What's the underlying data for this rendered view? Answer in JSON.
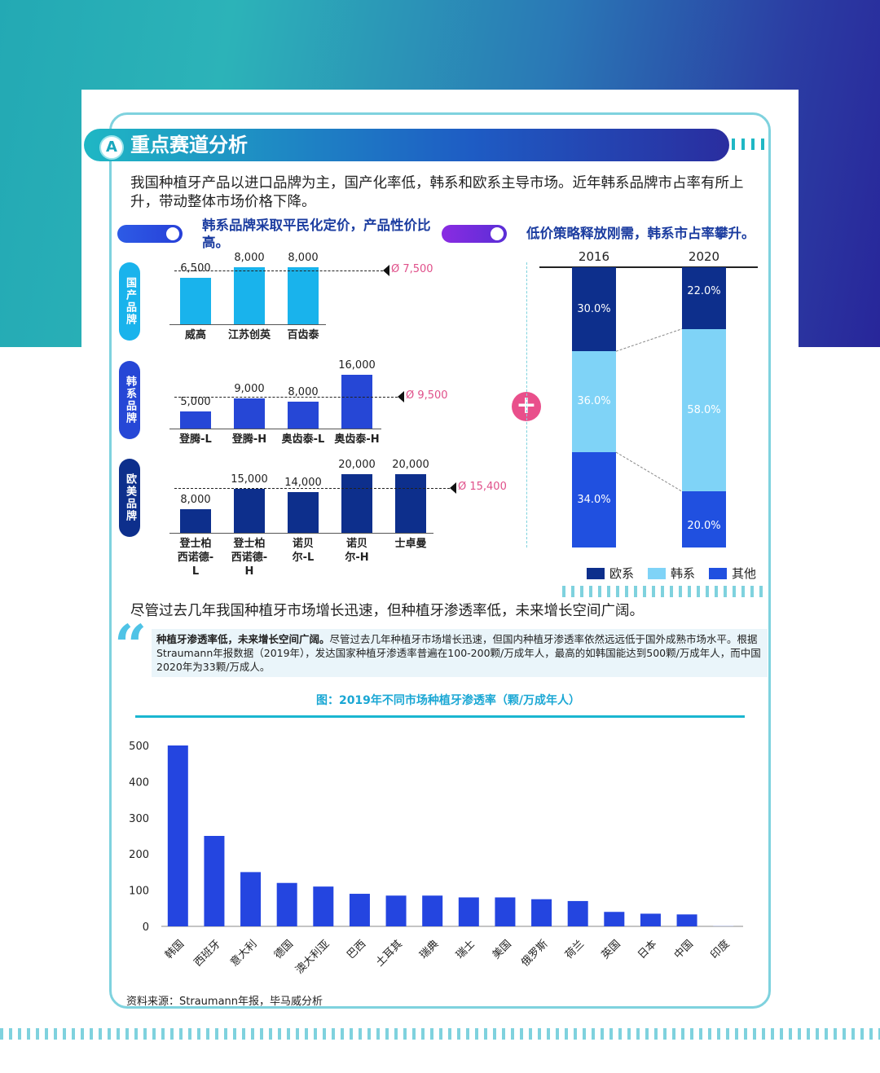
{
  "section_title": "重点赛道分析",
  "section_badge": "A",
  "intro_text": "我国种植牙产品以进口品牌为主，国产化率低，韩系和欧系主导市场。近年韩系品牌市占率有所上升，带动整体市场价格下降。",
  "left_heading": "韩系品牌采取平民化定价，产品性价比高。",
  "right_heading": "低价策略释放刚需，韩系市占率攀升。",
  "price_groups": [
    {
      "tag": "国产品牌",
      "avg_label": "Ø 7,500"
    },
    {
      "tag": "韩系品牌",
      "avg_label": "Ø 9,500"
    },
    {
      "tag": "欧美品牌",
      "avg_label": "Ø 15,400"
    }
  ],
  "plus_sign": "+",
  "stack_years": [
    "2016",
    "2020"
  ],
  "legend": [
    "欧系",
    "韩系",
    "其他"
  ],
  "sentence2": "尽管过去几年我国种植牙市场增长迅速，但种植牙渗透率低，未来增长空间广阔。",
  "quote_bold": "种植牙渗透率低，未来增长空间广阔。",
  "quote_text": "尽管过去几年种植牙市场增长迅速，但国内种植牙渗透率依然远远低于国外成熟市场水平。根据Straumann年报数据（2019年），发达国家种植牙渗透率普遍在100-200颗/万成年人，最高的如韩国能达到500颗/万成年人，而中国2020年为33颗/万成人。",
  "source": "资料来源：Straumann年报，毕马威分析",
  "colors": {
    "domestic": "#19b3ec",
    "korean": "#2647d6",
    "european": "#0d2f8c",
    "korean_share": "#7fd3f7",
    "other_share": "#2050e0",
    "bar": "#2445e0"
  },
  "chart_data": [
    {
      "type": "bar",
      "title": "",
      "series": [
        {
          "name": "国产品牌",
          "categories": [
            "威高",
            "江苏创英",
            "百齿泰"
          ],
          "values": [
            6500,
            8000,
            8000
          ],
          "labels": [
            "6,500",
            "8,000",
            "8,000"
          ],
          "average": 7500
        },
        {
          "name": "韩系品牌",
          "categories": [
            "登腾-L",
            "登腾-H",
            "奥齿泰-L",
            "奥齿泰-H"
          ],
          "values": [
            5000,
            9000,
            8000,
            16000
          ],
          "labels": [
            "5,000",
            "9,000",
            "8,000",
            "16,000"
          ],
          "average": 9500
        },
        {
          "name": "欧美品牌",
          "categories": [
            "登士柏西诺德-L",
            "登士柏西诺德-H",
            "诺贝尔-L",
            "诺贝尔-H",
            "士卓曼"
          ],
          "values": [
            8000,
            15000,
            14000,
            20000,
            20000
          ],
          "labels": [
            "8,000",
            "15,000",
            "14,000",
            "20,000",
            "20,000"
          ],
          "average": 15400
        }
      ]
    },
    {
      "type": "bar",
      "stacked": true,
      "categories": [
        "2016",
        "2020"
      ],
      "series": [
        {
          "name": "欧系",
          "values": [
            30.0,
            22.0
          ],
          "labels": [
            "30.0%",
            "22.0%"
          ]
        },
        {
          "name": "韩系",
          "values": [
            36.0,
            58.0
          ],
          "labels": [
            "36.0%",
            "58.0%"
          ]
        },
        {
          "name": "其他",
          "values": [
            34.0,
            20.0
          ],
          "labels": [
            "34.0%",
            "20.0%"
          ]
        }
      ]
    },
    {
      "type": "bar",
      "title": "图：2019年不同市场种植牙渗透率（颗/万成年人）",
      "categories": [
        "韩国",
        "西班牙",
        "意大利",
        "德国",
        "澳大利亚",
        "巴西",
        "土耳其",
        "瑞典",
        "瑞士",
        "美国",
        "俄罗斯",
        "荷兰",
        "英国",
        "日本",
        "中国",
        "印度"
      ],
      "values": [
        500,
        250,
        150,
        120,
        110,
        90,
        85,
        85,
        80,
        80,
        75,
        70,
        40,
        35,
        33,
        2
      ],
      "yticks": [
        0,
        100,
        200,
        300,
        400,
        500
      ],
      "ylim": [
        0,
        500
      ]
    }
  ]
}
